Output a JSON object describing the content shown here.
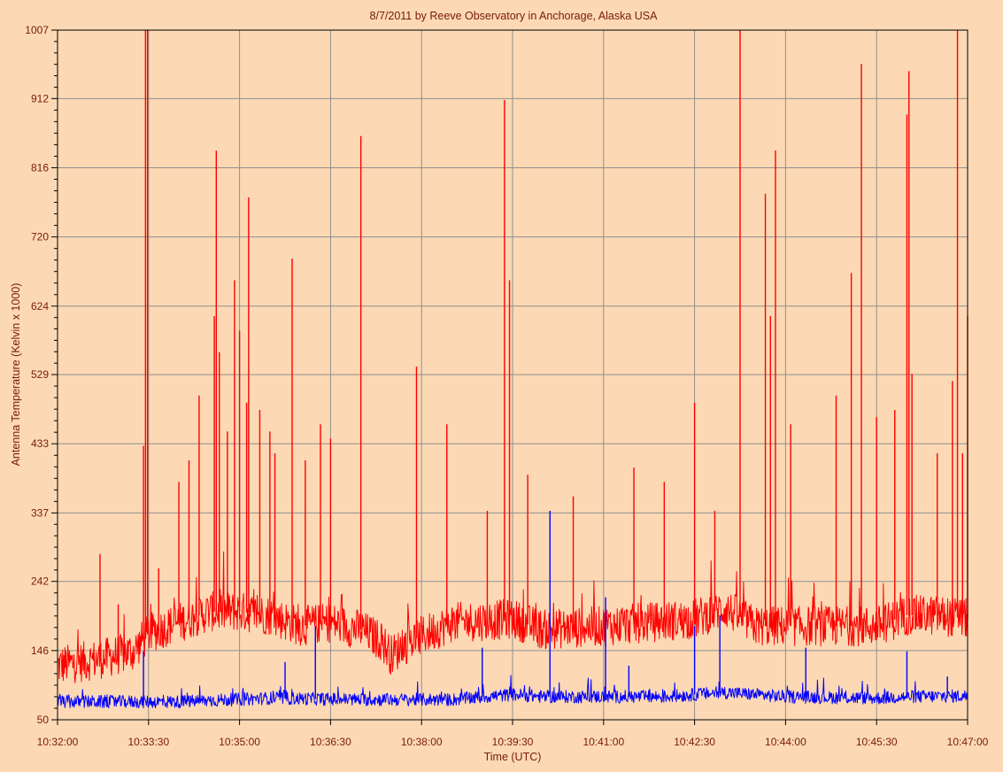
{
  "colors": {
    "background": "#fcd9b4",
    "grid": "#8f8f8f",
    "text": "#7a1b05",
    "red_series": "#ff0000",
    "blue_series": "#0000ff"
  },
  "chart_data": {
    "type": "line",
    "title": "8/7/2011  by  Reeve Observatory  in  Anchorage, Alaska  USA",
    "xlabel": "Time (UTC)",
    "ylabel": "Antenna Temperature (Kelvin x 1000)",
    "x_range_seconds_utc": [
      "10:32:00",
      "10:47:00"
    ],
    "ylim": [
      50,
      1007
    ],
    "grid": true,
    "x_ticks": [
      "10:32:00",
      "10:33:30",
      "10:35:00",
      "10:36:30",
      "10:38:00",
      "10:39:30",
      "10:41:00",
      "10:42:30",
      "10:44:00",
      "10:45:30",
      "10:47:00"
    ],
    "y_ticks": [
      50,
      146,
      242,
      337,
      433,
      529,
      624,
      720,
      816,
      912,
      1007
    ],
    "series": [
      {
        "color": "#ff0000",
        "baseline": [
          [
            "10:32:00",
            125
          ],
          [
            "10:32:45",
            135
          ],
          [
            "10:33:15",
            145
          ],
          [
            "10:33:30",
            170
          ],
          [
            "10:34:30",
            200
          ],
          [
            "10:35:00",
            200
          ],
          [
            "10:35:30",
            195
          ],
          [
            "10:36:00",
            180
          ],
          [
            "10:36:30",
            185
          ],
          [
            "10:37:00",
            175
          ],
          [
            "10:37:20",
            160
          ],
          [
            "10:37:30",
            140
          ],
          [
            "10:37:50",
            160
          ],
          [
            "10:38:30",
            185
          ],
          [
            "10:39:30",
            190
          ],
          [
            "10:40:00",
            175
          ],
          [
            "10:41:00",
            180
          ],
          [
            "10:42:30",
            190
          ],
          [
            "10:43:00",
            205
          ],
          [
            "10:43:30",
            180
          ],
          [
            "10:44:30",
            180
          ],
          [
            "10:45:30",
            180
          ],
          [
            "10:46:00",
            195
          ],
          [
            "10:46:30",
            195
          ],
          [
            "10:47:00",
            190
          ]
        ],
        "peaks": [
          [
            "10:32:42",
            280
          ],
          [
            "10:33:00",
            210
          ],
          [
            "10:33:25",
            430
          ],
          [
            "10:33:27",
            1007
          ],
          [
            "10:33:29",
            1007
          ],
          [
            "10:33:40",
            260
          ],
          [
            "10:34:00",
            380
          ],
          [
            "10:34:10",
            410
          ],
          [
            "10:34:20",
            500
          ],
          [
            "10:34:35",
            610
          ],
          [
            "10:34:37",
            840
          ],
          [
            "10:34:40",
            560
          ],
          [
            "10:34:48",
            450
          ],
          [
            "10:34:55",
            660
          ],
          [
            "10:35:00",
            590
          ],
          [
            "10:35:07",
            490
          ],
          [
            "10:35:09",
            775
          ],
          [
            "10:35:20",
            480
          ],
          [
            "10:35:30",
            450
          ],
          [
            "10:35:35",
            420
          ],
          [
            "10:35:52",
            690
          ],
          [
            "10:36:05",
            410
          ],
          [
            "10:36:20",
            460
          ],
          [
            "10:36:30",
            440
          ],
          [
            "10:37:00",
            860
          ],
          [
            "10:37:55",
            540
          ],
          [
            "10:38:25",
            460
          ],
          [
            "10:39:05",
            340
          ],
          [
            "10:39:22",
            910
          ],
          [
            "10:39:27",
            660
          ],
          [
            "10:39:45",
            390
          ],
          [
            "10:40:30",
            360
          ],
          [
            "10:41:30",
            400
          ],
          [
            "10:42:00",
            380
          ],
          [
            "10:42:30",
            490
          ],
          [
            "10:42:50",
            340
          ],
          [
            "10:43:15",
            1007
          ],
          [
            "10:43:40",
            780
          ],
          [
            "10:43:45",
            610
          ],
          [
            "10:43:50",
            840
          ],
          [
            "10:44:05",
            460
          ],
          [
            "10:44:50",
            500
          ],
          [
            "10:45:05",
            670
          ],
          [
            "10:45:15",
            960
          ],
          [
            "10:45:30",
            470
          ],
          [
            "10:45:48",
            480
          ],
          [
            "10:46:00",
            890
          ],
          [
            "10:46:02",
            950
          ],
          [
            "10:46:05",
            530
          ],
          [
            "10:46:30",
            420
          ],
          [
            "10:46:45",
            520
          ],
          [
            "10:46:50",
            1007
          ],
          [
            "10:46:55",
            420
          ],
          [
            "10:47:00",
            610
          ]
        ]
      },
      {
        "color": "#0000ff",
        "baseline": [
          [
            "10:32:00",
            75
          ],
          [
            "10:34:00",
            75
          ],
          [
            "10:35:30",
            80
          ],
          [
            "10:37:00",
            78
          ],
          [
            "10:38:30",
            78
          ],
          [
            "10:39:30",
            85
          ],
          [
            "10:40:00",
            82
          ],
          [
            "10:42:00",
            82
          ],
          [
            "10:43:00",
            88
          ],
          [
            "10:44:00",
            82
          ],
          [
            "10:45:30",
            80
          ],
          [
            "10:46:00",
            82
          ],
          [
            "10:47:00",
            83
          ]
        ],
        "peaks": [
          [
            "10:33:25",
            145
          ],
          [
            "10:35:45",
            130
          ],
          [
            "10:36:15",
            180
          ],
          [
            "10:39:00",
            150
          ],
          [
            "10:40:07",
            340
          ],
          [
            "10:41:02",
            220
          ],
          [
            "10:41:25",
            125
          ],
          [
            "10:42:30",
            180
          ],
          [
            "10:42:55",
            195
          ],
          [
            "10:44:20",
            150
          ],
          [
            "10:46:00",
            145
          ],
          [
            "10:46:40",
            110
          ]
        ]
      }
    ]
  }
}
